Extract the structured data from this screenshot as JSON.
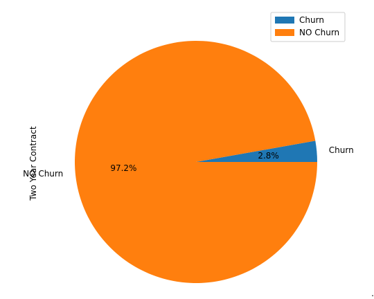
{
  "chart_data": {
    "type": "pie",
    "title": "",
    "ylabel": "Two Year Contract",
    "categories": [
      "Churn",
      "NO Churn"
    ],
    "values": [
      2.8,
      97.2
    ],
    "data_labels": [
      "2.8%",
      "97.2%"
    ],
    "colors": [
      "#1f77b4",
      "#ff7f0e"
    ],
    "legend": {
      "placement": "top-right",
      "entries": [
        "Churn",
        "NO Churn"
      ]
    }
  }
}
